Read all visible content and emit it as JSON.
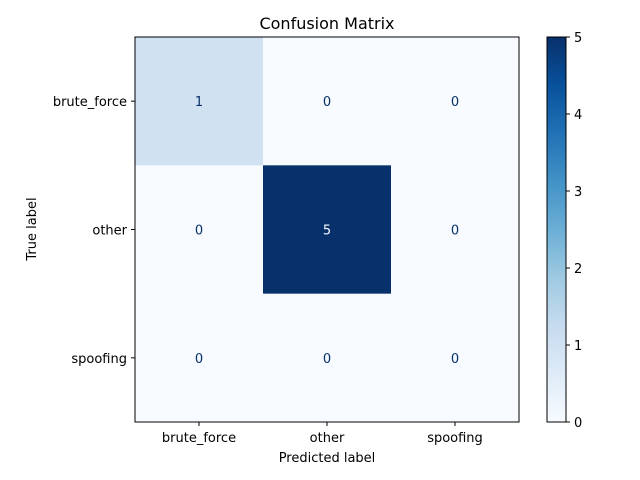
{
  "chart_data": {
    "type": "heatmap",
    "title": "Confusion Matrix",
    "xlabel": "Predicted label",
    "ylabel": "True label",
    "x_categories": [
      "brute_force",
      "other",
      "spoofing"
    ],
    "y_categories": [
      "brute_force",
      "other",
      "spoofing"
    ],
    "values": [
      [
        1,
        0,
        0
      ],
      [
        0,
        5,
        0
      ],
      [
        0,
        0,
        0
      ]
    ],
    "colormap": "Blues",
    "vmin": 0,
    "vmax": 5,
    "colorbar_ticks": [
      "0",
      "1",
      "2",
      "3",
      "4",
      "5"
    ],
    "grid": false,
    "colors": {
      "low": "#f7fbff",
      "high": "#08306b",
      "text_dark": "#08306b",
      "text_light": "#f7fbff"
    }
  }
}
